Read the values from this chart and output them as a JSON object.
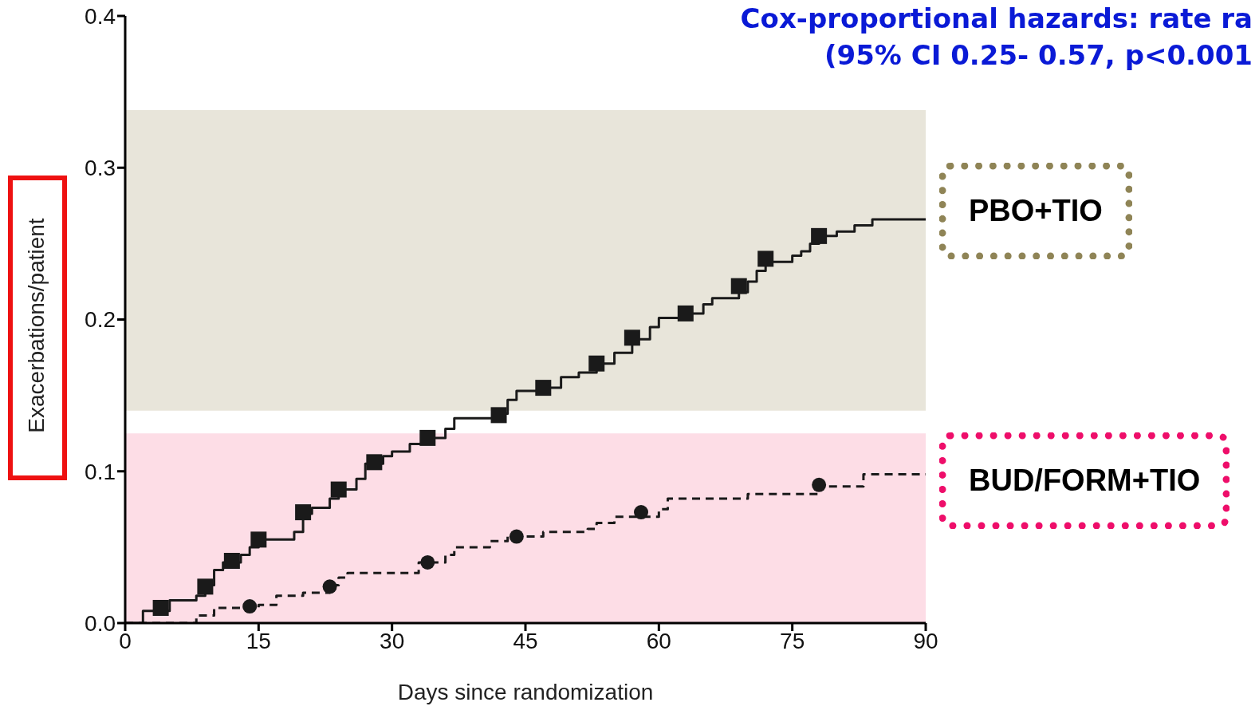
{
  "chart_data": {
    "type": "step",
    "title": "Cox-proportional hazards: rate ra",
    "subtitle": "(95% CI 0.25- 0.57, p<0.001",
    "xlabel": "Days since randomization",
    "ylabel": "Exacerbations/patient",
    "xlim": [
      0,
      90
    ],
    "xticks": [
      0,
      15,
      30,
      45,
      60,
      75,
      90
    ],
    "ylim": [
      0,
      0.4
    ],
    "yticks": [
      {
        "value": 0,
        "label": "0.0"
      },
      0.1,
      0.2,
      0.3,
      0.4
    ],
    "legend": "right",
    "series": [
      {
        "name": "PBO+TIO",
        "color": "#1a1a1a",
        "line_style": "solid",
        "marker": "none",
        "x": [
          0,
          2,
          5,
          8,
          9,
          10,
          11,
          13,
          14,
          15,
          19,
          20,
          21,
          23,
          24,
          26,
          27,
          29,
          30,
          32,
          34,
          36,
          37,
          42,
          43,
          44,
          47,
          49,
          51,
          53,
          55,
          57,
          59,
          60,
          63,
          65,
          66,
          69,
          70,
          71,
          72,
          75,
          76,
          77,
          78,
          80,
          82,
          84,
          90
        ],
        "values": [
          0,
          0.008,
          0.015,
          0.018,
          0.025,
          0.035,
          0.04,
          0.045,
          0.05,
          0.055,
          0.06,
          0.072,
          0.076,
          0.082,
          0.088,
          0.095,
          0.105,
          0.11,
          0.113,
          0.118,
          0.122,
          0.128,
          0.135,
          0.138,
          0.147,
          0.153,
          0.155,
          0.162,
          0.165,
          0.171,
          0.178,
          0.187,
          0.195,
          0.201,
          0.204,
          0.21,
          0.214,
          0.218,
          0.225,
          0.232,
          0.238,
          0.242,
          0.245,
          0.25,
          0.255,
          0.258,
          0.262,
          0.266,
          0.266
        ]
      },
      {
        "type": "scatter",
        "color": "#1a1a1a",
        "marker": "square",
        "x": [
          4,
          9,
          12,
          15,
          20,
          24,
          28,
          34,
          42,
          47,
          53,
          57,
          63,
          69,
          72,
          78
        ],
        "values": [
          0.01,
          0.024,
          0.041,
          0.055,
          0.073,
          0.088,
          0.106,
          0.122,
          0.137,
          0.155,
          0.171,
          0.188,
          0.204,
          0.222,
          0.24,
          0.255
        ]
      },
      {
        "name": "BUD/FORM+TIO",
        "color": "#1a1a1a",
        "line_style": "dashed",
        "marker": "none",
        "x": [
          0,
          7,
          8,
          10,
          15,
          17,
          20,
          23,
          24,
          25,
          32,
          33,
          36,
          37,
          41,
          43,
          47,
          52,
          53,
          55,
          60,
          61,
          70,
          78,
          83,
          90
        ],
        "values": [
          0,
          0,
          0.005,
          0.01,
          0.012,
          0.018,
          0.02,
          0.025,
          0.03,
          0.033,
          0.033,
          0.04,
          0.045,
          0.05,
          0.054,
          0.057,
          0.06,
          0.062,
          0.066,
          0.07,
          0.075,
          0.082,
          0.085,
          0.09,
          0.098,
          0.098
        ]
      },
      {
        "type": "scatter",
        "color": "#1a1a1a",
        "marker": "circle",
        "x": [
          14,
          23,
          34,
          44,
          58,
          78
        ],
        "values": [
          0.011,
          0.024,
          0.04,
          0.057,
          0.073,
          0.091
        ]
      }
    ],
    "bands": [
      {
        "axis": "y",
        "from": 0.14,
        "to": 0.338,
        "color": "#e8e5da"
      },
      {
        "axis": "y",
        "from": 0,
        "to": 0.125,
        "color": "#fddde6"
      }
    ]
  }
}
